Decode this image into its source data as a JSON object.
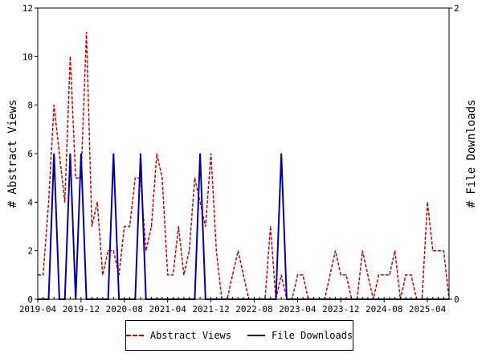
{
  "chart_data": {
    "type": "line",
    "ylabel": "# Abstract Views",
    "y2label": "# File Downloads",
    "ylim": [
      0,
      12
    ],
    "y2lim": [
      0,
      2
    ],
    "yticks": [
      0,
      2,
      4,
      6,
      8,
      10,
      12
    ],
    "y2ticks": [
      0,
      2
    ],
    "xlim": [
      "2019-04",
      "2025-08"
    ],
    "xticks": [
      "2019-04",
      "2019-12",
      "2020-08",
      "2021-04",
      "2021-12",
      "2022-08",
      "2023-04",
      "2023-12",
      "2024-08",
      "2025-04"
    ],
    "legend_position": "bottom",
    "grid": false,
    "series": [
      {
        "name": "Abstract Views",
        "axis": "left",
        "color": "#cc0000",
        "dash": true,
        "x": [
          "2019-04",
          "2019-05",
          "2019-06",
          "2019-07",
          "2019-08",
          "2019-09",
          "2019-10",
          "2019-11",
          "2019-12",
          "2020-01",
          "2020-02",
          "2020-03",
          "2020-04",
          "2020-05",
          "2020-06",
          "2020-07",
          "2020-08",
          "2020-09",
          "2020-10",
          "2020-11",
          "2020-12",
          "2021-01",
          "2021-02",
          "2021-03",
          "2021-04",
          "2021-05",
          "2021-06",
          "2021-07",
          "2021-08",
          "2021-09",
          "2021-10",
          "2021-11",
          "2021-12",
          "2022-01",
          "2022-02",
          "2022-03",
          "2022-04",
          "2022-05",
          "2022-06",
          "2022-07",
          "2022-08",
          "2022-09",
          "2022-10",
          "2022-11",
          "2022-12",
          "2023-01",
          "2023-02",
          "2023-03",
          "2023-04",
          "2023-05",
          "2023-06",
          "2023-07",
          "2023-08",
          "2023-09",
          "2023-10",
          "2023-11",
          "2023-12",
          "2024-01",
          "2024-02",
          "2024-03",
          "2024-04",
          "2024-05",
          "2024-06",
          "2024-07",
          "2024-08",
          "2024-09",
          "2024-10",
          "2024-11",
          "2024-12",
          "2025-01",
          "2025-02",
          "2025-03",
          "2025-04",
          "2025-05",
          "2025-06",
          "2025-07",
          "2025-08"
        ],
        "values": [
          1,
          1,
          4,
          8,
          6,
          4,
          10,
          5,
          5,
          11,
          3,
          4,
          1,
          2,
          2,
          1,
          3,
          3,
          5,
          5,
          2,
          3,
          6,
          5,
          1,
          1,
          3,
          1,
          2,
          5,
          4,
          3,
          6,
          2,
          0,
          0,
          1,
          2,
          1,
          0,
          0,
          0,
          0,
          3,
          0,
          1,
          0,
          0,
          1,
          1,
          0,
          0,
          0,
          0,
          1,
          2,
          1,
          1,
          0,
          0,
          2,
          1,
          0,
          1,
          1,
          1,
          2,
          0,
          1,
          1,
          0,
          0,
          4,
          2,
          2,
          2,
          0
        ],
        "x_offsets_note": ""
      },
      {
        "name": "File Downloads",
        "axis": "right",
        "color": "#0000aa",
        "dash": false,
        "x": [
          "2019-04",
          "2019-05",
          "2019-06",
          "2019-07",
          "2019-08",
          "2019-09",
          "2019-10",
          "2019-11",
          "2019-12",
          "2020-01",
          "2020-02",
          "2020-03",
          "2020-04",
          "2020-05",
          "2020-06",
          "2020-07",
          "2020-08",
          "2020-09",
          "2020-10",
          "2020-11",
          "2020-12",
          "2021-01",
          "2021-02",
          "2021-03",
          "2021-04",
          "2021-05",
          "2021-06",
          "2021-07",
          "2021-08",
          "2021-09",
          "2021-10",
          "2021-11",
          "2021-12",
          "2022-01",
          "2022-02",
          "2022-03",
          "2022-04",
          "2022-05",
          "2022-06",
          "2022-07",
          "2022-08",
          "2022-09",
          "2022-10",
          "2022-11",
          "2022-12",
          "2023-01",
          "2023-02",
          "2023-03",
          "2023-04",
          "2023-05",
          "2023-06",
          "2023-07",
          "2023-08",
          "2023-09",
          "2023-10",
          "2023-11",
          "2023-12",
          "2024-01",
          "2024-02",
          "2024-03",
          "2024-04",
          "2024-05",
          "2024-06",
          "2024-07",
          "2024-08",
          "2024-09",
          "2024-10",
          "2024-11",
          "2024-12",
          "2025-01",
          "2025-02",
          "2025-03",
          "2025-04",
          "2025-05",
          "2025-06",
          "2025-07",
          "2025-08"
        ],
        "values": [
          0,
          0,
          0,
          1,
          0,
          0,
          1,
          0,
          1,
          0,
          0,
          0,
          0,
          0,
          1,
          0,
          0,
          0,
          0,
          1,
          0,
          0,
          0,
          0,
          0,
          0,
          0,
          0,
          0,
          0,
          1,
          0,
          0,
          0,
          0,
          0,
          0,
          0,
          0,
          0,
          0,
          0,
          0,
          0,
          0,
          1,
          0,
          0,
          0,
          0,
          0,
          0,
          0,
          0,
          0,
          0,
          0,
          0,
          0,
          0,
          0,
          0,
          0,
          0,
          0,
          0,
          0,
          0,
          0,
          0,
          0,
          0,
          0,
          0,
          0,
          0,
          0
        ]
      }
    ]
  }
}
